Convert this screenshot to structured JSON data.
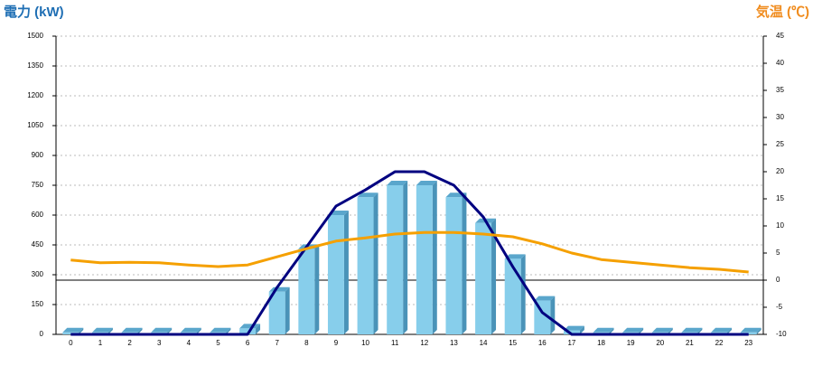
{
  "chart_data": {
    "type": "bar",
    "y_label": "電力 (kW)",
    "y2_label": "気温 (℃)",
    "categories": [
      "0",
      "1",
      "2",
      "3",
      "4",
      "5",
      "6",
      "7",
      "8",
      "9",
      "10",
      "11",
      "12",
      "13",
      "14",
      "15",
      "16",
      "17",
      "18",
      "19",
      "20",
      "21",
      "22",
      "23"
    ],
    "series": [
      {
        "type": "bar",
        "color": "#87ceeb",
        "values": [
          10,
          10,
          10,
          10,
          10,
          10,
          30,
          215,
          430,
          600,
          690,
          750,
          750,
          690,
          560,
          380,
          170,
          20,
          10,
          10,
          10,
          10,
          10,
          10
        ]
      },
      {
        "type": "line",
        "color": "#000080",
        "values": [
          0,
          0,
          0,
          0,
          0,
          0,
          0,
          236,
          440,
          645,
          727,
          818,
          818,
          750,
          590,
          340,
          110,
          0,
          0,
          0,
          0,
          0,
          0,
          0
        ]
      },
      {
        "type": "line",
        "color": "#f5a000",
        "axis": "y2",
        "values": [
          3.7,
          3.2,
          3.3,
          3.2,
          2.8,
          2.5,
          2.8,
          4.3,
          5.8,
          7.2,
          7.8,
          8.5,
          8.8,
          8.8,
          8.5,
          8,
          6.7,
          5,
          3.8,
          3.3,
          2.8,
          2.3,
          2,
          1.5
        ]
      }
    ],
    "ylim": [
      0,
      1500
    ],
    "yticks": [
      0,
      150,
      300,
      450,
      600,
      750,
      900,
      1050,
      1200,
      1350,
      1500
    ],
    "y2lim": [
      -10,
      45
    ],
    "y2ticks": [
      -10,
      -5,
      0,
      5,
      10,
      15,
      20,
      25,
      30,
      35,
      40,
      45
    ],
    "grid": true
  }
}
